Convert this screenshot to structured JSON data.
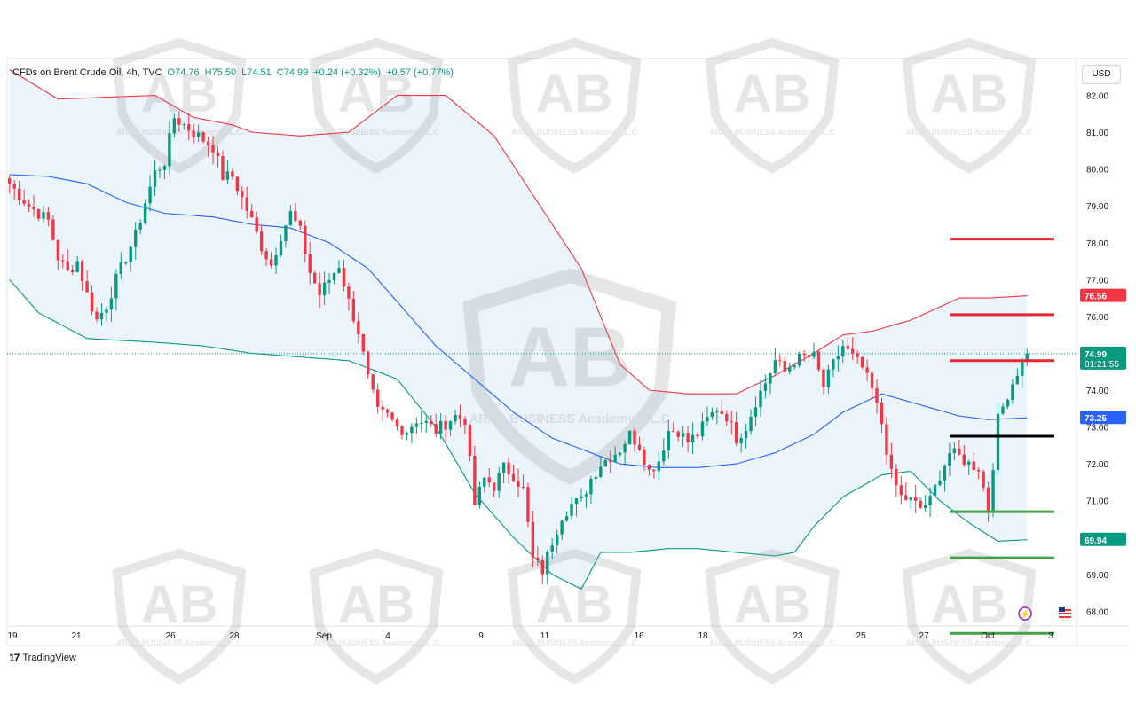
{
  "header": {
    "symbol": "CFDs on Brent Crude Oil, 4h, TVC",
    "open": "O74.76",
    "high": "H75.50",
    "low": "L74.51",
    "close": "C74.99",
    "change": "+0.24 (+0.32%)",
    "change2": "+0.57 (+0.77%)"
  },
  "currency": "USD",
  "brand": "TradingView",
  "watermark": "ARAB BUSINESS Academy L.L.C",
  "colors": {
    "up": "#089981",
    "down": "#f23645",
    "basis": "#2962ff",
    "upper_band": "#f23645",
    "lower_band": "#089981",
    "band_fill": "#eaf3fb",
    "resistance": "#e5262e",
    "support": "#43a047",
    "pivot": "#000000"
  },
  "chart_data": {
    "type": "candlestick",
    "title": "CFDs on Brent Crude Oil, 4h, TVC",
    "ylim": [
      67.6,
      83.0
    ],
    "y_ticks": [
      "68.00",
      "69.00",
      "70.00",
      "71.00",
      "72.00",
      "73.00",
      "74.00",
      "75.00",
      "76.00",
      "77.00",
      "78.00",
      "79.00",
      "80.00",
      "81.00",
      "82.00"
    ],
    "x_ticks": [
      "19",
      "21",
      "26",
      "28",
      "Sep",
      "4",
      "9",
      "11",
      "16",
      "18",
      "23",
      "25",
      "27",
      "Oct",
      "3"
    ],
    "price_labels": [
      {
        "value": 76.56,
        "text": "76.56",
        "role": "upper_band"
      },
      {
        "value": 74.99,
        "text": "74.99",
        "sub": "01:21:55",
        "role": "last"
      },
      {
        "value": 73.25,
        "text": "73.25",
        "role": "basis"
      },
      {
        "value": 69.94,
        "text": "69.94",
        "role": "lower_band"
      }
    ],
    "levels": [
      {
        "value": 78.1,
        "role": "resistance"
      },
      {
        "value": 76.05,
        "role": "resistance"
      },
      {
        "value": 74.8,
        "role": "resistance"
      },
      {
        "value": 72.75,
        "role": "pivot"
      },
      {
        "value": 70.7,
        "role": "support"
      },
      {
        "value": 69.45,
        "role": "support"
      },
      {
        "value": 67.4,
        "role": "support"
      }
    ],
    "path": [
      [
        0,
        79.6
      ],
      [
        4,
        79.0
      ],
      [
        8,
        78.6
      ],
      [
        10,
        77.6
      ],
      [
        12,
        77.2
      ],
      [
        14,
        77.5
      ],
      [
        16,
        76.6
      ],
      [
        18,
        75.9
      ],
      [
        20,
        76.3
      ],
      [
        22,
        77.0
      ],
      [
        24,
        77.6
      ],
      [
        26,
        78.2
      ],
      [
        28,
        79.1
      ],
      [
        30,
        79.9
      ],
      [
        32,
        80.2
      ],
      [
        34,
        81.4
      ],
      [
        36,
        81.2
      ],
      [
        38,
        81.0
      ],
      [
        40,
        80.8
      ],
      [
        42,
        80.6
      ],
      [
        44,
        79.8
      ],
      [
        46,
        79.8
      ],
      [
        48,
        79.2
      ],
      [
        50,
        78.6
      ],
      [
        52,
        77.9
      ],
      [
        54,
        77.4
      ],
      [
        56,
        78.2
      ],
      [
        58,
        78.8
      ],
      [
        60,
        78.3
      ],
      [
        62,
        77.2
      ],
      [
        64,
        76.6
      ],
      [
        66,
        77.0
      ],
      [
        68,
        77.4
      ],
      [
        70,
        76.4
      ],
      [
        72,
        75.6
      ],
      [
        74,
        74.3
      ],
      [
        76,
        73.4
      ],
      [
        78,
        73.3
      ],
      [
        80,
        73.0
      ],
      [
        82,
        72.9
      ],
      [
        84,
        73.2
      ],
      [
        86,
        73.1
      ],
      [
        88,
        72.9
      ],
      [
        90,
        73.1
      ],
      [
        92,
        73.3
      ],
      [
        94,
        73.2
      ],
      [
        96,
        70.9
      ],
      [
        98,
        71.6
      ],
      [
        100,
        71.4
      ],
      [
        102,
        71.9
      ],
      [
        104,
        71.7
      ],
      [
        106,
        71.3
      ],
      [
        108,
        69.4
      ],
      [
        110,
        69.1
      ],
      [
        112,
        69.9
      ],
      [
        114,
        70.6
      ],
      [
        116,
        70.9
      ],
      [
        118,
        71.0
      ],
      [
        120,
        71.6
      ],
      [
        122,
        72.0
      ],
      [
        124,
        72.2
      ],
      [
        126,
        72.4
      ],
      [
        128,
        72.8
      ],
      [
        130,
        72.5
      ],
      [
        132,
        71.8
      ],
      [
        134,
        72.1
      ],
      [
        136,
        72.9
      ],
      [
        138,
        72.9
      ],
      [
        140,
        72.6
      ],
      [
        142,
        72.8
      ],
      [
        144,
        73.2
      ],
      [
        146,
        73.5
      ],
      [
        148,
        73.3
      ],
      [
        150,
        72.7
      ],
      [
        152,
        73.0
      ],
      [
        154,
        73.7
      ],
      [
        156,
        74.2
      ],
      [
        158,
        74.8
      ],
      [
        160,
        74.5
      ],
      [
        162,
        74.8
      ],
      [
        164,
        74.9
      ],
      [
        166,
        74.9
      ],
      [
        168,
        74.1
      ],
      [
        170,
        74.7
      ],
      [
        172,
        75.2
      ],
      [
        174,
        74.9
      ],
      [
        176,
        74.6
      ],
      [
        178,
        74.0
      ],
      [
        180,
        73.1
      ],
      [
        182,
        71.7
      ],
      [
        184,
        71.1
      ],
      [
        186,
        71.0
      ],
      [
        188,
        70.8
      ],
      [
        190,
        71.0
      ],
      [
        192,
        71.7
      ],
      [
        194,
        72.3
      ],
      [
        196,
        72.2
      ],
      [
        198,
        72.0
      ],
      [
        200,
        71.9
      ],
      [
        202,
        70.8
      ],
      [
        204,
        73.2
      ],
      [
        206,
        73.9
      ],
      [
        208,
        74.5
      ],
      [
        210,
        74.99
      ]
    ],
    "upper_band": [
      [
        0,
        82.7
      ],
      [
        10,
        81.9
      ],
      [
        30,
        82.0
      ],
      [
        38,
        81.4
      ],
      [
        46,
        81.2
      ],
      [
        50,
        81.0
      ],
      [
        60,
        80.9
      ],
      [
        70,
        81.0
      ],
      [
        80,
        82.0
      ],
      [
        90,
        82.0
      ],
      [
        100,
        80.9
      ],
      [
        110,
        78.9
      ],
      [
        118,
        77.3
      ],
      [
        126,
        74.7
      ],
      [
        132,
        74.0
      ],
      [
        140,
        73.9
      ],
      [
        150,
        73.9
      ],
      [
        158,
        74.4
      ],
      [
        166,
        75.0
      ],
      [
        172,
        75.5
      ],
      [
        178,
        75.6
      ],
      [
        186,
        75.9
      ],
      [
        196,
        76.5
      ],
      [
        202,
        76.5
      ],
      [
        210,
        76.56
      ]
    ],
    "basis": [
      [
        0,
        79.85
      ],
      [
        8,
        79.8
      ],
      [
        16,
        79.6
      ],
      [
        24,
        79.1
      ],
      [
        32,
        78.8
      ],
      [
        42,
        78.7
      ],
      [
        50,
        78.5
      ],
      [
        58,
        78.4
      ],
      [
        66,
        78.0
      ],
      [
        74,
        77.3
      ],
      [
        80,
        76.4
      ],
      [
        88,
        75.2
      ],
      [
        96,
        74.3
      ],
      [
        104,
        73.4
      ],
      [
        112,
        72.7
      ],
      [
        120,
        72.3
      ],
      [
        126,
        72.0
      ],
      [
        134,
        71.9
      ],
      [
        142,
        71.9
      ],
      [
        150,
        72.0
      ],
      [
        158,
        72.3
      ],
      [
        166,
        72.8
      ],
      [
        172,
        73.4
      ],
      [
        180,
        73.9
      ],
      [
        188,
        73.6
      ],
      [
        196,
        73.3
      ],
      [
        202,
        73.2
      ],
      [
        210,
        73.25
      ]
    ],
    "lower_band": [
      [
        0,
        77.0
      ],
      [
        6,
        76.1
      ],
      [
        16,
        75.4
      ],
      [
        30,
        75.3
      ],
      [
        40,
        75.2
      ],
      [
        50,
        75.0
      ],
      [
        60,
        74.9
      ],
      [
        70,
        74.8
      ],
      [
        80,
        74.3
      ],
      [
        88,
        73.0
      ],
      [
        96,
        71.2
      ],
      [
        104,
        70.0
      ],
      [
        112,
        69.0
      ],
      [
        118,
        68.6
      ],
      [
        122,
        69.6
      ],
      [
        128,
        69.6
      ],
      [
        136,
        69.7
      ],
      [
        142,
        69.7
      ],
      [
        150,
        69.6
      ],
      [
        158,
        69.5
      ],
      [
        162,
        69.6
      ],
      [
        166,
        70.3
      ],
      [
        172,
        71.1
      ],
      [
        180,
        71.7
      ],
      [
        186,
        71.8
      ],
      [
        192,
        71.0
      ],
      [
        198,
        70.4
      ],
      [
        204,
        69.9
      ],
      [
        210,
        69.94
      ]
    ]
  }
}
